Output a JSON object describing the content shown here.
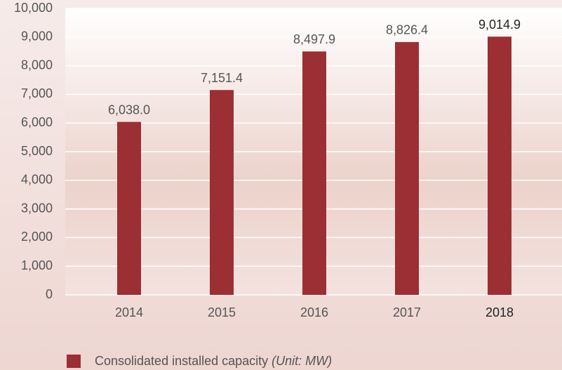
{
  "chart_data": {
    "type": "bar",
    "categories": [
      "2014",
      "2015",
      "2016",
      "2017",
      "2018"
    ],
    "series": [
      {
        "name": "Consolidated installed capacity",
        "note": "(Unit: MW)",
        "color": "#9b2f33",
        "values": [
          6038.0,
          7151.4,
          8497.9,
          8826.4,
          9014.9
        ],
        "value_labels": [
          "6,038.0",
          "7,151.4",
          "8,497.9",
          "8,826.4",
          "9,014.9"
        ]
      }
    ],
    "ylim": [
      0,
      10000
    ],
    "yticks": [
      0,
      {
        "value": 1000,
        "label": "1,000"
      },
      {
        "value": 2000,
        "label": "2,000"
      },
      {
        "value": 3000,
        "label": "3,000"
      },
      {
        "value": 4000,
        "label": "4,000"
      },
      {
        "value": 5000,
        "label": "5,000"
      },
      {
        "value": 6000,
        "label": "6,000"
      },
      {
        "value": 7000,
        "label": "7,000"
      },
      {
        "value": 8000,
        "label": "8,000"
      },
      {
        "value": 9000,
        "label": "9,000"
      },
      {
        "value": 10000,
        "label": "10,000"
      }
    ],
    "grid": true
  }
}
